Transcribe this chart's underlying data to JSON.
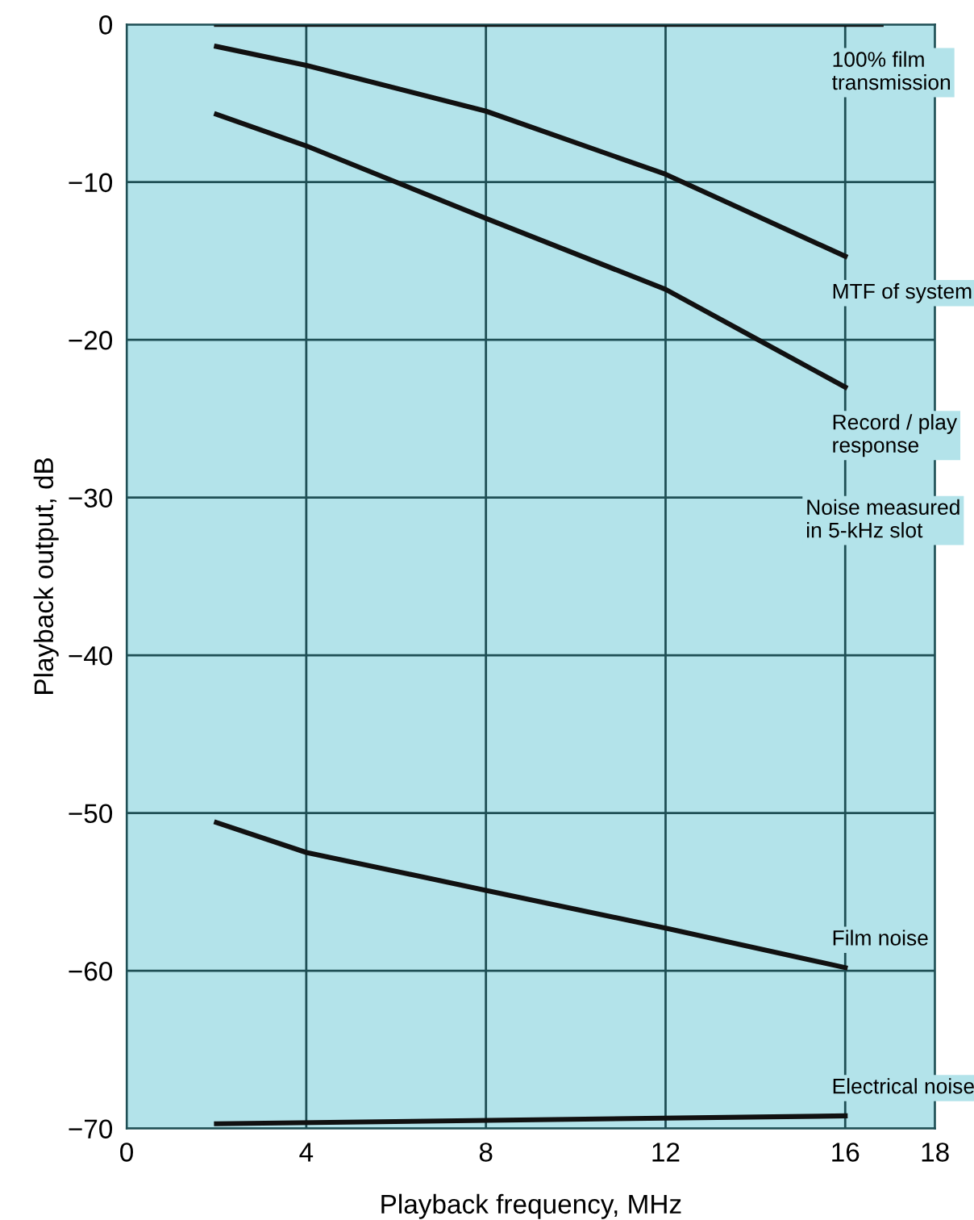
{
  "chart_data": {
    "type": "line",
    "xlabel": "Playback frequency, MHz",
    "ylabel": "Playback output, dB",
    "xlim": [
      0,
      18
    ],
    "ylim": [
      -70,
      0
    ],
    "xticks": [
      0,
      4,
      8,
      12,
      16,
      18
    ],
    "yticks": [
      0,
      {
        "value": -10,
        "label": "−10"
      },
      {
        "value": -20,
        "label": "−20"
      },
      {
        "value": -30,
        "label": "−30"
      },
      {
        "value": -40,
        "label": "−40"
      },
      {
        "value": -50,
        "label": "−50"
      },
      {
        "value": -60,
        "label": "−60"
      },
      {
        "value": -70,
        "label": "−70"
      }
    ],
    "grid": true,
    "legend": false,
    "marker": "none",
    "line_style": "solid",
    "series": [
      {
        "name": "100% film\ntransmission",
        "color": "#111111",
        "x": [
          2,
          16.8
        ],
        "values": [
          0,
          0
        ]
      },
      {
        "name": "MTF of system",
        "color": "#111111",
        "x": [
          2,
          4,
          8,
          12,
          16
        ],
        "values": [
          -1.4,
          -2.6,
          -5.5,
          -9.5,
          -14.7
        ]
      },
      {
        "name": "Record / play\nresponse",
        "color": "#111111",
        "x": [
          2,
          4,
          8,
          12,
          14,
          16
        ],
        "values": [
          -5.7,
          -7.7,
          -12.3,
          -16.8,
          -19.9,
          -23.0
        ]
      },
      {
        "name": "Film noise",
        "color": "#111111",
        "x": [
          2,
          4,
          8,
          12,
          16
        ],
        "values": [
          -50.6,
          -52.5,
          -54.9,
          -57.3,
          -59.8
        ]
      },
      {
        "name": "Electrical noise",
        "color": "#111111",
        "x": [
          2,
          16
        ],
        "values": [
          -69.7,
          -69.2
        ]
      }
    ],
    "annotations": [
      "Noise measured\nin 5-kHz slot"
    ]
  }
}
